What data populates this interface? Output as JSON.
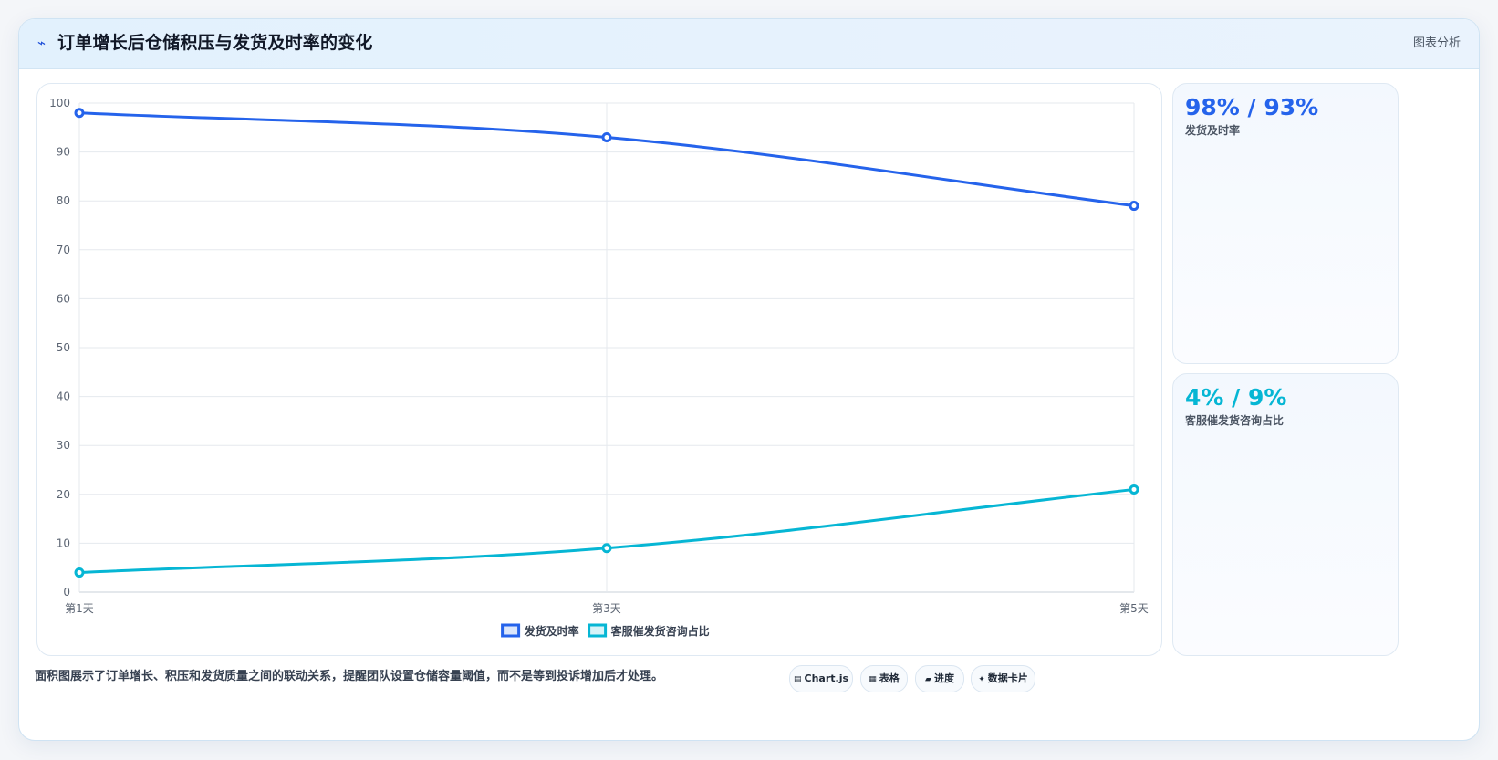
{
  "header": {
    "icon": "chart-line-icon",
    "icon_glyph": "⌁",
    "title": "订单增长后仓储积压与发货及时率的变化",
    "tag": "图表分析"
  },
  "kpis": [
    {
      "value": "98% / 93%",
      "label": "发货及时率"
    },
    {
      "value": "4% / 9%",
      "label": "客服催发货咨询占比"
    }
  ],
  "footer": {
    "note": "面积图展示了订单增长、积压和发货质量之间的联动关系，提醒团队设置仓储容量阈值，而不是等到投诉增加后才处理。",
    "pills": [
      {
        "icon": "chart-icon",
        "glyph": "▤",
        "label": "Chart.js"
      },
      {
        "icon": "table-icon",
        "glyph": "▦",
        "label": "表格"
      },
      {
        "icon": "progress-icon",
        "glyph": "▰",
        "label": "进度"
      },
      {
        "icon": "card-icon",
        "glyph": "✦",
        "label": "数据卡片"
      }
    ]
  },
  "chart_data": {
    "type": "line",
    "categories": [
      "第1天",
      "第3天",
      "第5天"
    ],
    "series": [
      {
        "name": "发货及时率",
        "values": [
          98,
          93,
          79
        ],
        "color": "#2563eb"
      },
      {
        "name": "客服催发货咨询占比",
        "values": [
          4,
          9,
          21
        ],
        "color": "#06b6d4"
      }
    ],
    "ylim": [
      0,
      100
    ],
    "yticks": [
      0,
      10,
      20,
      30,
      40,
      50,
      60,
      70,
      80,
      90,
      100
    ],
    "grid": true,
    "legend": "bottom"
  }
}
